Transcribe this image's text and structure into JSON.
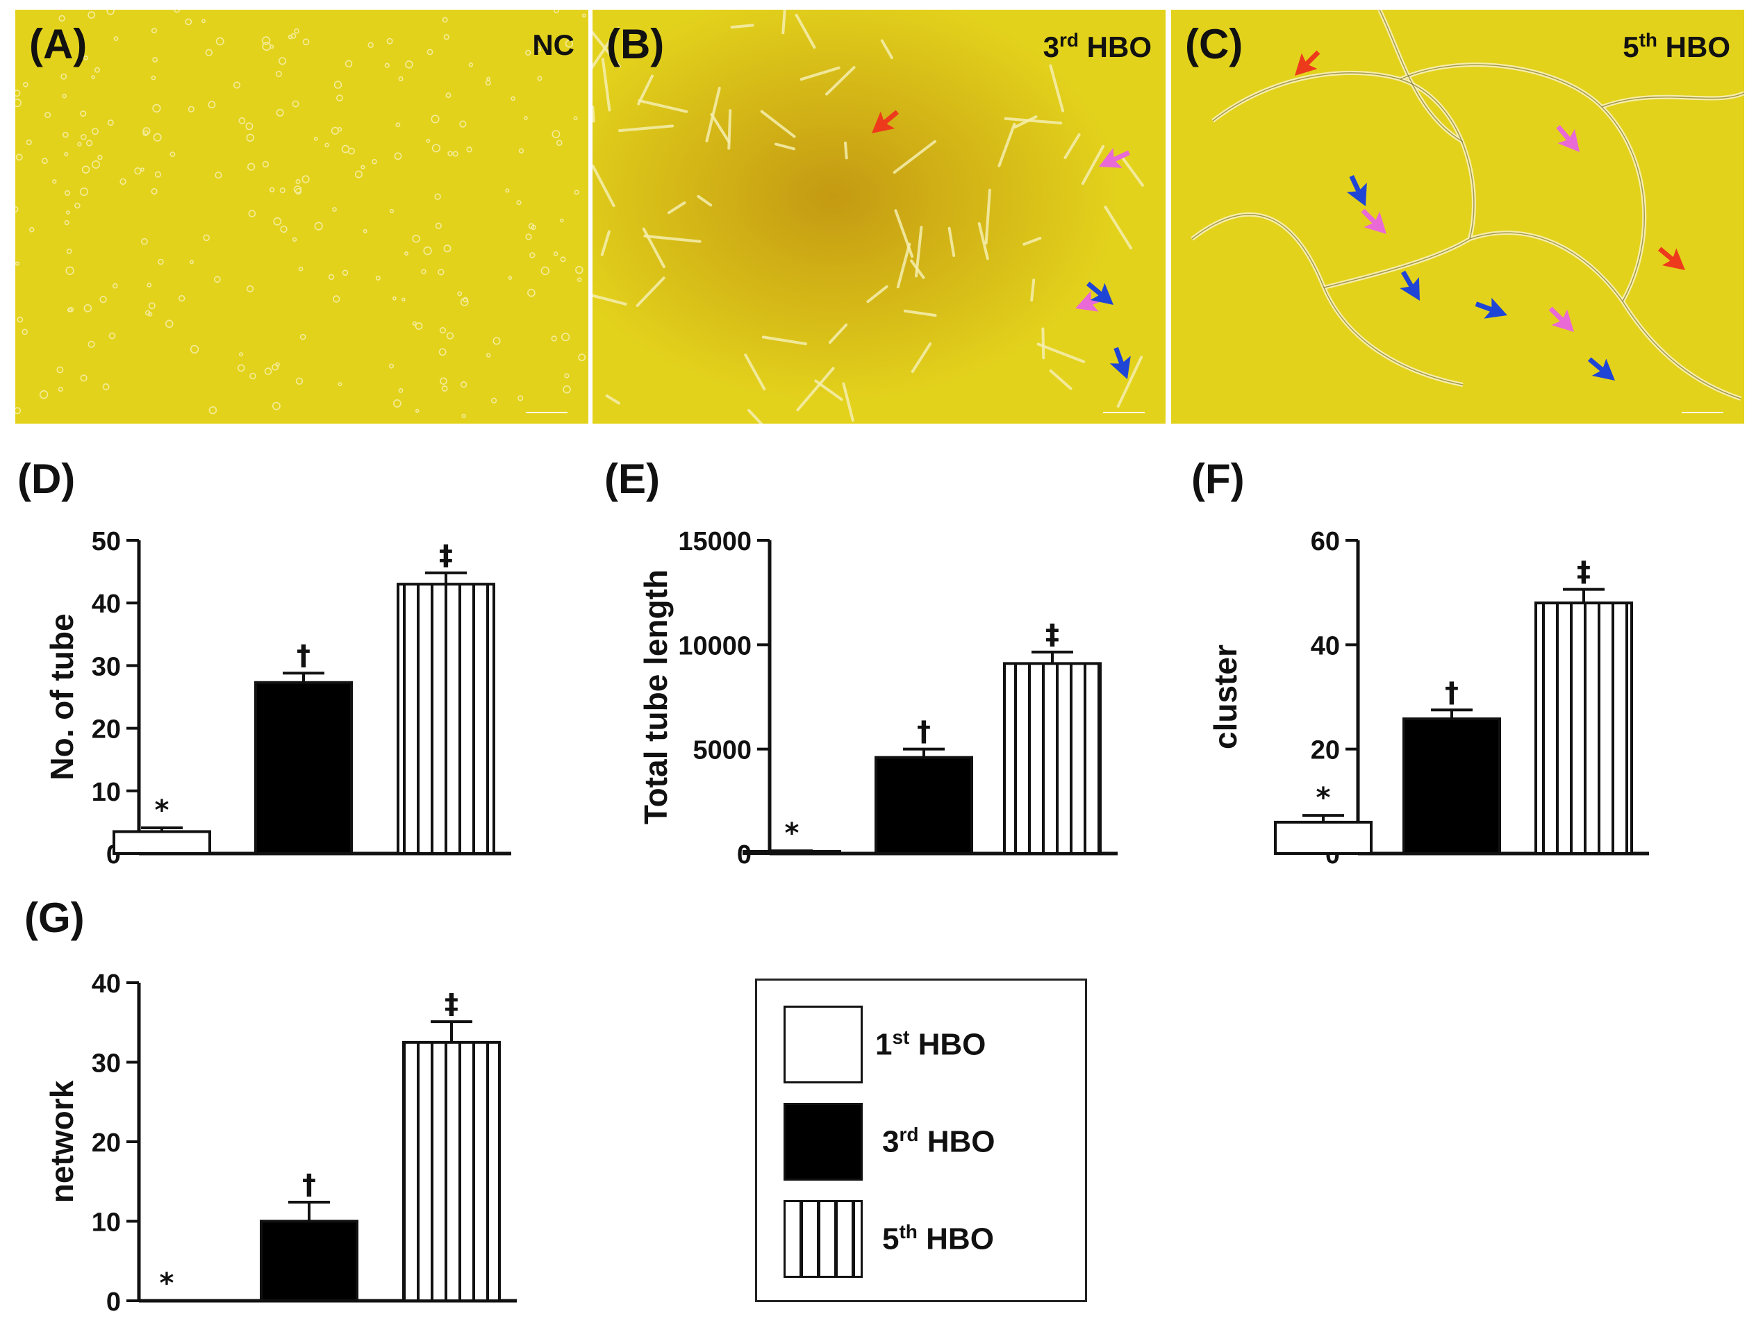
{
  "figure": {
    "panel_labels": [
      "(A)",
      "(B)",
      "(C)",
      "(D)",
      "(E)",
      "(F)",
      "(G)"
    ],
    "micrographs": [
      {
        "label": "(A)",
        "tag_main": "NC",
        "tag_sup": "",
        "tag_suffix": ""
      },
      {
        "label": "(B)",
        "tag_main": "3",
        "tag_sup": "rd",
        "tag_suffix": " HBO"
      },
      {
        "label": "(C)",
        "tag_main": "5",
        "tag_sup": "th",
        "tag_suffix": " HBO"
      }
    ],
    "colors": {
      "background": "#e3d21c",
      "red_arrow": "#ee3a1c",
      "pink_arrow": "#e96ad6",
      "blue_arrow": "#1f45d6",
      "bar_black": "#000000"
    }
  },
  "legend": {
    "items": [
      {
        "num": "1",
        "sup": "st",
        "suffix": " HBO",
        "fill": "white"
      },
      {
        "num": "3",
        "sup": "rd",
        "suffix": " HBO",
        "fill": "black"
      },
      {
        "num": "5",
        "sup": "th",
        "suffix": " HBO",
        "fill": "stripes"
      }
    ]
  },
  "chart_data": [
    {
      "panel": "(D)",
      "type": "bar",
      "categories": [
        "1st HBO",
        "3rd HBO",
        "5th HBO"
      ],
      "values": [
        3.5,
        27.3,
        43
      ],
      "errors": [
        0.6,
        1.5,
        1.8
      ],
      "markers": [
        "*",
        "†",
        "‡"
      ],
      "ylabel": "No. of tube",
      "ylim": [
        0,
        50
      ],
      "yticks": [
        0,
        10,
        20,
        30,
        40,
        50
      ]
    },
    {
      "panel": "(E)",
      "type": "bar",
      "categories": [
        "1st HBO",
        "3rd HBO",
        "5th HBO"
      ],
      "values": [
        100,
        4600,
        9100
      ],
      "errors": [
        30,
        400,
        550
      ],
      "markers": [
        "*",
        "†",
        "‡"
      ],
      "ylabel": "Total tube length",
      "ylim": [
        0,
        15000
      ],
      "yticks": [
        0,
        5000,
        10000,
        15000
      ]
    },
    {
      "panel": "(F)",
      "type": "bar",
      "categories": [
        "1st HBO",
        "3rd HBO",
        "5th HBO"
      ],
      "values": [
        6,
        25.8,
        48
      ],
      "errors": [
        1.3,
        1.7,
        2.6
      ],
      "markers": [
        "*",
        "†",
        "‡"
      ],
      "ylabel": "cluster",
      "ylim": [
        0,
        60
      ],
      "yticks": [
        0,
        20,
        40,
        60
      ]
    },
    {
      "panel": "(G)",
      "type": "bar",
      "categories": [
        "1st HBO",
        "3rd HBO",
        "5th HBO"
      ],
      "values": [
        0,
        10,
        32.5
      ],
      "errors": [
        0,
        2.4,
        2.6
      ],
      "markers": [
        "*",
        "†",
        "‡"
      ],
      "ylabel": "network",
      "ylim": [
        0,
        40
      ],
      "yticks": [
        0,
        10,
        20,
        30,
        40
      ]
    }
  ]
}
